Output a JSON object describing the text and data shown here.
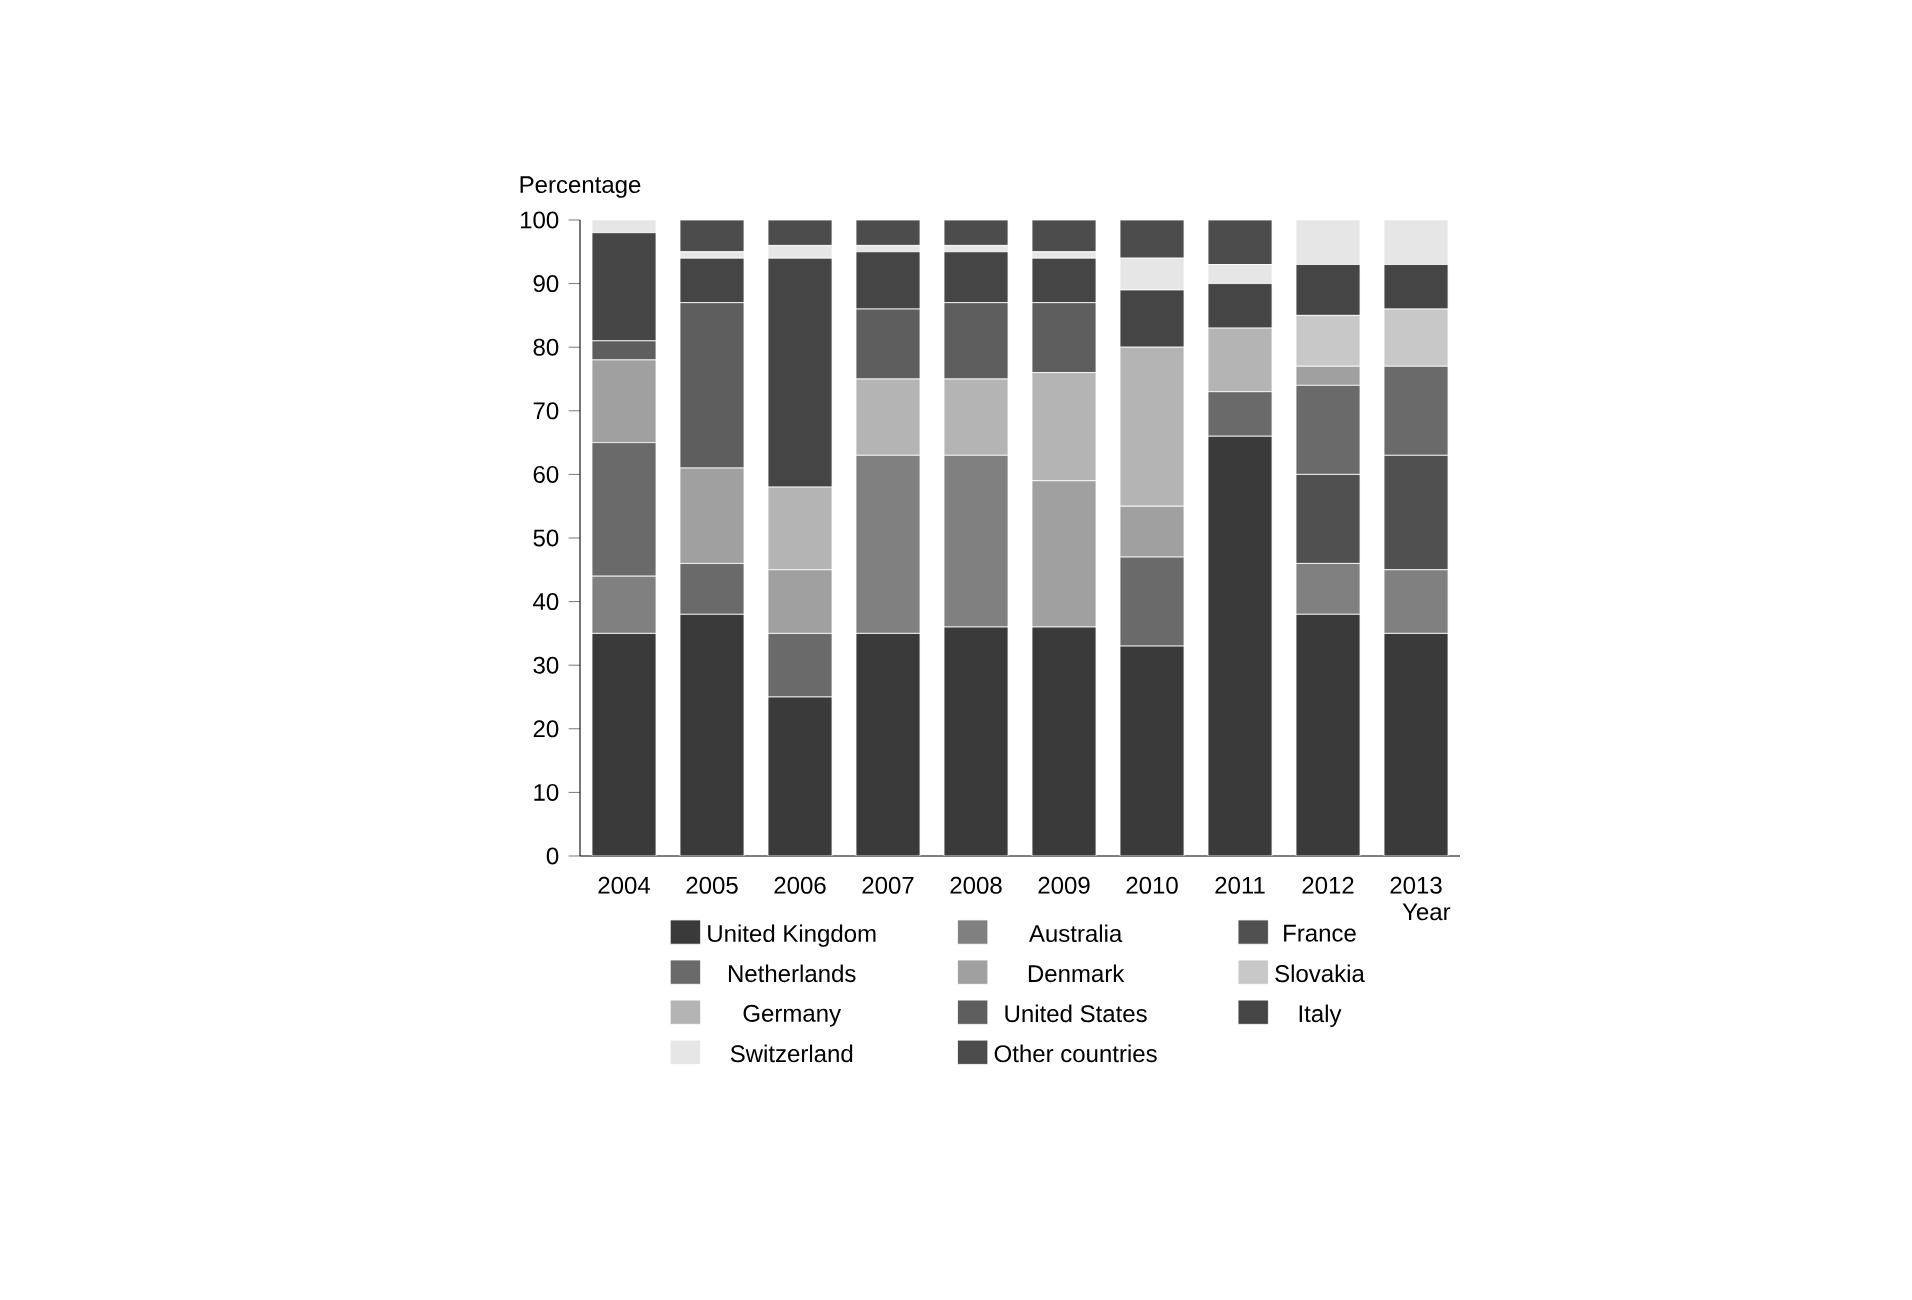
{
  "chart_data": {
    "type": "bar",
    "stacked": true,
    "xlabel": "Year",
    "ylabel": "Percentage",
    "categories": [
      "2004",
      "2005",
      "2006",
      "2007",
      "2008",
      "2009",
      "2010",
      "2011",
      "2012",
      "2013"
    ],
    "ylim": [
      0,
      100
    ],
    "yticks": [
      0,
      10,
      20,
      30,
      40,
      50,
      60,
      70,
      80,
      90,
      100
    ],
    "grid": false,
    "legend": "bottom",
    "series": [
      {
        "name": "United Kingdom",
        "color": "#3a3a3a",
        "values": [
          35,
          38,
          25,
          35,
          36,
          36,
          33,
          66,
          38,
          35
        ]
      },
      {
        "name": "Australia",
        "color": "#808080",
        "values": [
          9,
          0,
          0,
          28,
          27,
          0,
          0,
          0,
          8,
          10
        ]
      },
      {
        "name": "France",
        "color": "#505050",
        "values": [
          0,
          0,
          0,
          0,
          0,
          0,
          0,
          0,
          14,
          18
        ]
      },
      {
        "name": "Netherlands",
        "color": "#6a6a6a",
        "values": [
          21,
          8,
          10,
          0,
          0,
          0,
          14,
          7,
          14,
          14
        ]
      },
      {
        "name": "Denmark",
        "color": "#a0a0a0",
        "values": [
          13,
          15,
          10,
          0,
          0,
          23,
          8,
          0,
          3,
          0
        ]
      },
      {
        "name": "Slovakia",
        "color": "#c8c8c8",
        "values": [
          0,
          0,
          0,
          0,
          0,
          0,
          0,
          0,
          8,
          9
        ]
      },
      {
        "name": "Germany",
        "color": "#b4b4b4",
        "values": [
          0,
          0,
          13,
          12,
          12,
          17,
          25,
          10,
          0,
          0
        ]
      },
      {
        "name": "United States",
        "color": "#5e5e5e",
        "values": [
          3,
          26,
          0,
          11,
          12,
          11,
          0,
          0,
          0,
          0
        ]
      },
      {
        "name": "Italy",
        "color": "#454545",
        "values": [
          17,
          7,
          36,
          9,
          8,
          7,
          9,
          7,
          8,
          7
        ]
      },
      {
        "name": "Switzerland",
        "color": "#e6e6e6",
        "values": [
          2,
          1,
          2,
          1,
          1,
          1,
          5,
          3,
          7,
          7
        ]
      },
      {
        "name": "Other countries",
        "color": "#4c4c4c",
        "values": [
          0,
          5,
          4,
          4,
          4,
          5,
          6,
          7,
          0,
          0
        ]
      }
    ]
  }
}
